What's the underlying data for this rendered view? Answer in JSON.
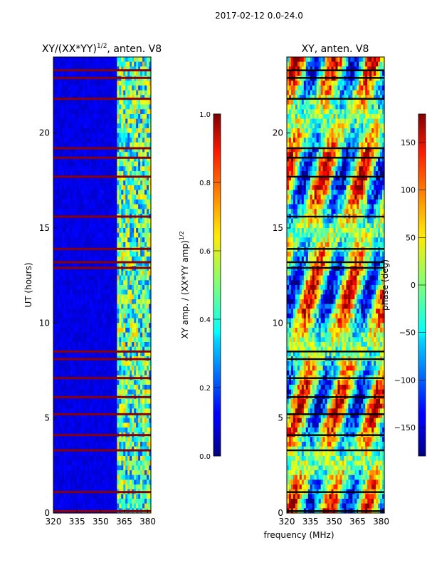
{
  "figure": {
    "suptitle": "2017-02-12 0.0-24.0",
    "shared_xlabel": "frequency (MHz)"
  },
  "chart_data": [
    {
      "type": "heatmap",
      "title_main": "XY/(XX*YY)",
      "title_sup": "1/2",
      "title_tail": ", anten. V8",
      "xlabel": "",
      "ylabel": "UT (hours)",
      "xlim": [
        320,
        382
      ],
      "ylim": [
        0,
        24
      ],
      "xticks": [
        320,
        335,
        350,
        365,
        380
      ],
      "yticks": [
        0,
        5,
        10,
        15,
        20
      ],
      "colorbar": {
        "label_main": "XY amp. / (XX*YY amp)",
        "label_sup": "1/2",
        "range": [
          0.0,
          1.0
        ],
        "ticks": [
          "0.0",
          "0.2",
          "0.4",
          "0.6",
          "0.8",
          "1.0"
        ],
        "colormap": "jet"
      },
      "description_values": {
        "background_level": 0.1,
        "band_start_mhz": 360,
        "band_level": 0.45,
        "flagged_rows_hours": [
          0.1,
          1.1,
          3.3,
          4.1,
          5.2,
          6.1,
          7.1,
          8.1,
          8.5,
          12.9,
          13.2,
          13.9,
          15.6,
          17.7,
          18.7,
          19.2,
          21.8,
          22.9,
          23.3
        ]
      }
    },
    {
      "type": "heatmap",
      "title_main": "XY, anten. V8",
      "xlabel": "frequency (MHz)",
      "ylabel": "",
      "xlim": [
        320,
        382
      ],
      "ylim": [
        0,
        24
      ],
      "xticks": [
        320,
        335,
        350,
        365,
        380
      ],
      "yticks": [
        0,
        5,
        10,
        15,
        20
      ],
      "colorbar": {
        "label_main": "phase (deg)",
        "range": [
          -180,
          180
        ],
        "ticks": [
          "−150",
          "−100",
          "−50",
          "0",
          "50",
          "100",
          "150"
        ],
        "colormap": "jet"
      },
      "description_values": {
        "phase_range_deg": [
          -180,
          180
        ],
        "flagged_rows_hours": [
          0.1,
          1.1,
          3.3,
          4.1,
          5.2,
          6.1,
          7.1,
          8.1,
          8.5,
          12.9,
          13.2,
          13.9,
          15.6,
          17.7,
          18.7,
          19.2,
          21.8,
          22.9,
          23.3
        ]
      }
    }
  ],
  "colors": {
    "jet_low": "#00007f",
    "jet_high": "#7f0000",
    "axis": "#000000"
  }
}
